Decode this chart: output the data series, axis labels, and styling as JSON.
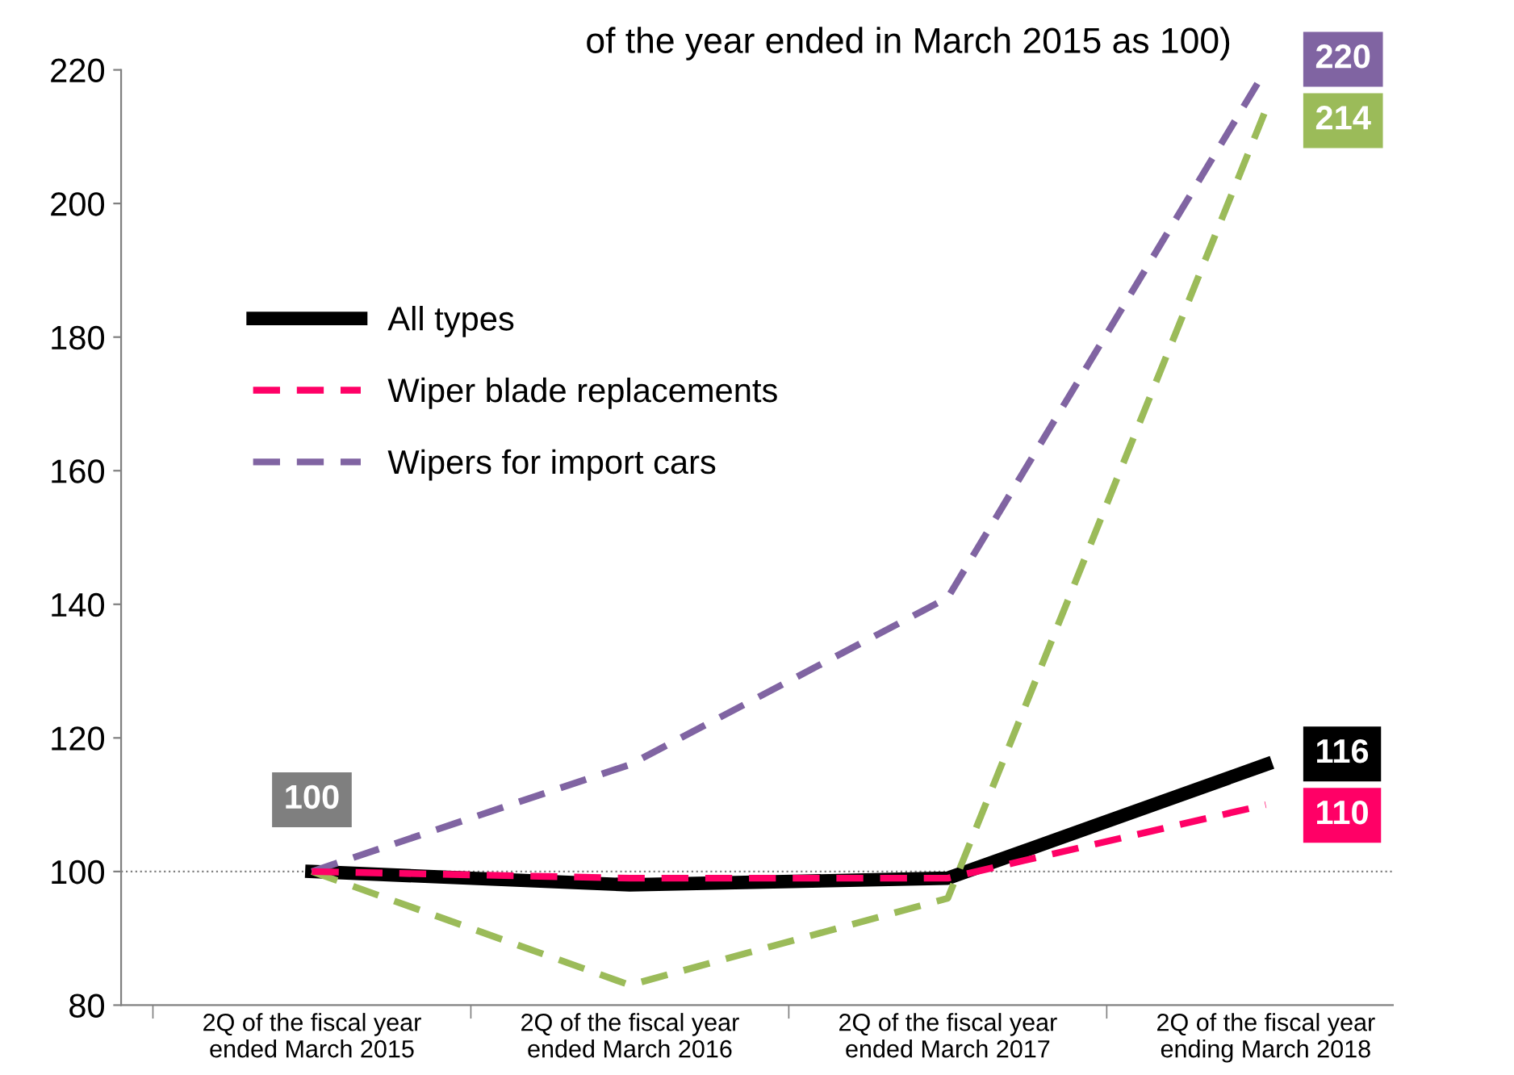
{
  "chart_data": {
    "type": "line",
    "title": "of the year ended in March 2015 as 100)",
    "categories": [
      "2Q of the fiscal year\nended March 2015",
      "2Q of the fiscal year\nended March 2016",
      "2Q of the fiscal year\nended March 2017",
      "2Q of the fiscal year\nending March 2018"
    ],
    "series": [
      {
        "name": "All types",
        "color": "#000000",
        "values": [
          100,
          98,
          99,
          116
        ],
        "value_labels": [
          null,
          null,
          null,
          "116"
        ],
        "line_style": "solid"
      },
      {
        "name": "Wiper blade replacements",
        "color": "#ff0066",
        "values": [
          100,
          99,
          99,
          110
        ],
        "value_labels": [
          null,
          null,
          null,
          "110"
        ],
        "line_style": "dashed"
      },
      {
        "color": "#9bbb59",
        "values": [
          100,
          83,
          96,
          214
        ],
        "value_labels": [
          null,
          null,
          null,
          "214"
        ],
        "line_style": "dashed"
      },
      {
        "name": "Wipers for import cars",
        "color": "#8064a2",
        "values": [
          100,
          116,
          141,
          220
        ],
        "value_labels": [
          null,
          null,
          null,
          "220"
        ],
        "line_style": "dashed"
      }
    ],
    "annotations": [
      {
        "text": "100",
        "x": "2Q of the fiscal year\nended March 2015",
        "y": 100
      }
    ],
    "ref_lines": [
      {
        "axis": "y",
        "value": 100,
        "color": "#808080",
        "line_style": "dotted"
      }
    ],
    "ylim": [
      80,
      220
    ],
    "yticks": [
      80,
      100,
      120,
      140,
      160,
      180,
      200,
      220
    ],
    "grid": false,
    "legend": "top left",
    "marker": "none"
  }
}
